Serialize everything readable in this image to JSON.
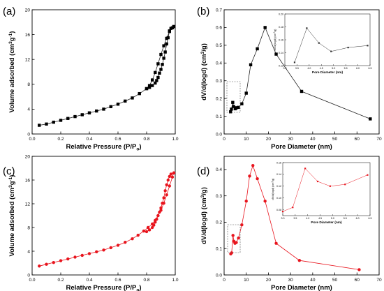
{
  "chart_data": [
    {
      "type": "line",
      "panel_label": "(a)",
      "xlabel_parts": [
        "Relative Pressure (P/P",
        "o",
        ")"
      ],
      "ylabel_parts": [
        "Volume adsorbed (cm",
        "3",
        "g",
        "-1",
        ")"
      ],
      "xlim": [
        0.0,
        1.0
      ],
      "ylim": [
        0,
        20
      ],
      "xticks": [
        "0.0",
        "0.2",
        "0.4",
        "0.6",
        "0.8",
        "1.0"
      ],
      "yticks": [
        "0",
        "4",
        "8",
        "12",
        "16",
        "20"
      ],
      "marker": "square",
      "color": "#000000",
      "series": [
        {
          "x": [
            0.05,
            0.1,
            0.15,
            0.2,
            0.25,
            0.3,
            0.35,
            0.4,
            0.45,
            0.5,
            0.55,
            0.6,
            0.65,
            0.7,
            0.75,
            0.8,
            0.82,
            0.84,
            0.86,
            0.88,
            0.9,
            0.92,
            0.94,
            0.96,
            0.98,
            0.99
          ],
          "y": [
            1.4,
            1.6,
            1.9,
            2.2,
            2.5,
            2.8,
            3.1,
            3.4,
            3.7,
            4.0,
            4.4,
            4.8,
            5.3,
            5.8,
            6.5,
            7.3,
            7.8,
            8.7,
            9.9,
            11.3,
            12.8,
            14.2,
            15.4,
            16.5,
            17.1,
            17.3
          ]
        },
        {
          "x": [
            0.99,
            0.97,
            0.96,
            0.95,
            0.94,
            0.93,
            0.92,
            0.91,
            0.9,
            0.89,
            0.88,
            0.87,
            0.86,
            0.84,
            0.82,
            0.8
          ],
          "y": [
            17.3,
            17.0,
            16.6,
            15.5,
            14.5,
            13.2,
            12.2,
            11.2,
            10.4,
            9.8,
            9.1,
            8.6,
            8.2,
            7.8,
            7.5,
            7.3
          ]
        }
      ]
    },
    {
      "type": "line",
      "panel_label": "(b)",
      "xlabel": "Pore Diameter (nm)",
      "ylabel_parts": [
        "dV/d(logd) (cm",
        "3",
        "/g)"
      ],
      "xlim": [
        0,
        70
      ],
      "ylim": [
        0.0,
        0.7
      ],
      "xticks": [
        "0",
        "10",
        "20",
        "30",
        "40",
        "50",
        "60",
        "70"
      ],
      "yticks": [
        "0.0",
        "0.1",
        "0.2",
        "0.3",
        "0.4",
        "0.5",
        "0.6",
        "0.7"
      ],
      "marker": "square",
      "color": "#000000",
      "x": [
        2.9,
        3.3,
        3.9,
        4.3,
        5.0,
        5.6,
        6.4,
        8.0,
        10.0,
        12.0,
        15.0,
        18.5,
        23.5,
        35.0,
        66.0
      ],
      "y": [
        0.125,
        0.14,
        0.178,
        0.155,
        0.142,
        0.148,
        0.15,
        0.17,
        0.23,
        0.39,
        0.48,
        0.6,
        0.45,
        0.24,
        0.085
      ],
      "inset": {
        "xlabel": "Pore Diameter (nm)",
        "ylabel_parts": [
          "dV/d(logd) (cm",
          "3",
          "/g)"
        ],
        "xlim": [
          3.0,
          6.5
        ],
        "ylim": [
          0.12,
          0.2
        ],
        "xticks": [
          "3.0",
          "3.5",
          "4.0",
          "4.5",
          "5.0",
          "5.5",
          "6.0",
          "6.5"
        ],
        "yticks": [
          "0.12",
          "0.14",
          "0.16",
          "0.18",
          "0.20"
        ],
        "color": "#555555",
        "x": [
          3.4,
          3.9,
          4.4,
          4.9,
          5.6,
          6.4
        ],
        "y": [
          0.125,
          0.178,
          0.155,
          0.142,
          0.148,
          0.151
        ]
      }
    },
    {
      "type": "line",
      "panel_label": "(c)",
      "xlabel_parts": [
        "Relative Pressure (P/P",
        "o",
        ")"
      ],
      "ylabel_parts": [
        "Volume adsorbed (cm",
        "3",
        "g",
        "-1",
        ")"
      ],
      "xlim": [
        0.0,
        1.0
      ],
      "ylim": [
        0,
        20
      ],
      "xticks": [
        "0.0",
        "0.2",
        "0.4",
        "0.6",
        "0.8",
        "1.0"
      ],
      "yticks": [
        "0",
        "4",
        "8",
        "12",
        "16",
        "20"
      ],
      "marker": "circle",
      "color": "#e8141d",
      "series": [
        {
          "x": [
            0.05,
            0.1,
            0.15,
            0.2,
            0.25,
            0.3,
            0.35,
            0.4,
            0.45,
            0.5,
            0.55,
            0.6,
            0.65,
            0.7,
            0.74,
            0.78,
            0.81,
            0.84,
            0.86,
            0.88,
            0.9,
            0.92,
            0.94,
            0.96,
            0.98,
            0.99
          ],
          "y": [
            1.5,
            1.8,
            2.1,
            2.4,
            2.7,
            3.0,
            3.3,
            3.6,
            3.9,
            4.2,
            4.6,
            5.0,
            5.5,
            6.1,
            6.7,
            7.4,
            8.0,
            8.6,
            9.2,
            10.0,
            10.9,
            12.1,
            13.5,
            15.0,
            16.5,
            17.2
          ]
        },
        {
          "x": [
            0.99,
            0.97,
            0.96,
            0.95,
            0.94,
            0.93,
            0.92,
            0.91,
            0.9,
            0.89,
            0.88,
            0.87,
            0.86,
            0.85,
            0.84,
            0.82,
            0.8
          ],
          "y": [
            17.2,
            17.0,
            16.6,
            16.0,
            15.2,
            14.2,
            13.0,
            12.1,
            11.3,
            10.6,
            10.0,
            9.4,
            8.9,
            8.4,
            8.0,
            7.6,
            7.3
          ]
        }
      ]
    },
    {
      "type": "line",
      "panel_label": "(d)",
      "xlabel": "Pore Diameter (nm)",
      "ylabel_parts": [
        "dV/d(logd) (cm",
        "3",
        "/g)"
      ],
      "xlim": [
        0,
        70
      ],
      "ylim": [
        0.0,
        0.45
      ],
      "xticks": [
        "0",
        "10",
        "20",
        "30",
        "40",
        "50",
        "60",
        "70"
      ],
      "yticks": [
        "0.0",
        "0.1",
        "0.2",
        "0.3",
        "0.4"
      ],
      "marker": "circle",
      "color": "#e8141d",
      "x": [
        3.0,
        3.4,
        4.0,
        4.4,
        4.9,
        5.5,
        6.5,
        8.0,
        10.0,
        11.5,
        13.0,
        15.0,
        18.5,
        23.5,
        34.0,
        61.0
      ],
      "y": [
        0.08,
        0.084,
        0.15,
        0.128,
        0.12,
        0.123,
        0.14,
        0.19,
        0.28,
        0.375,
        0.415,
        0.365,
        0.28,
        0.12,
        0.055,
        0.02
      ],
      "inset": {
        "xlabel": "Pore Diameter (nm)",
        "ylabel_parts": [
          "dV/d(logd) (cm",
          "3",
          "/g)"
        ],
        "xlim": [
          3.0,
          6.5
        ],
        "ylim": [
          0.07,
          0.16
        ],
        "xticks": [
          "3.0",
          "3.5",
          "4.0",
          "4.5",
          "5.0",
          "5.5",
          "6.0",
          "6.5"
        ],
        "yticks": [
          "0.08",
          "0.10",
          "0.12",
          "0.14",
          "0.16"
        ],
        "color": "#555555",
        "x": [
          3.0,
          3.4,
          3.9,
          4.4,
          4.9,
          5.5,
          6.4
        ],
        "y": [
          0.077,
          0.084,
          0.15,
          0.128,
          0.12,
          0.123,
          0.139
        ]
      }
    }
  ]
}
